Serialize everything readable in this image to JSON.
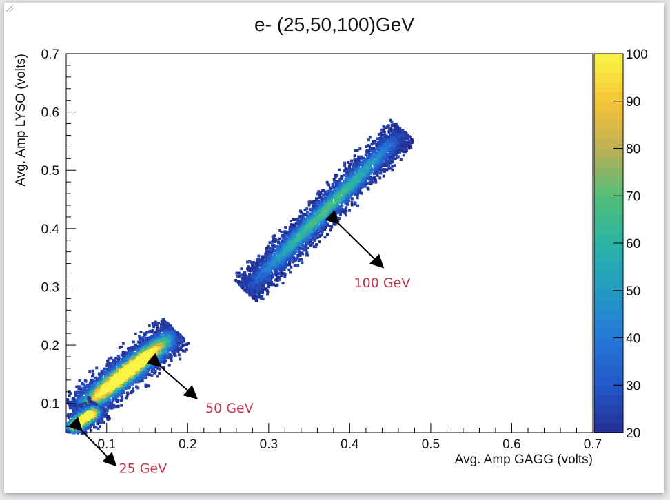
{
  "chart_data": {
    "type": "heatmap",
    "title": "e- (25,50,100)GeV",
    "xlabel": "Avg. Amp GAGG (volts)",
    "ylabel": "Avg. Amp LYSO (volts)",
    "xlim": [
      0.05,
      0.7
    ],
    "ylim": [
      0.05,
      0.7
    ],
    "xticks": [
      "0.1",
      "0.2",
      "0.3",
      "0.4",
      "0.5",
      "0.6",
      "0.7"
    ],
    "yticks": [
      "0.1",
      "0.2",
      "0.3",
      "0.4",
      "0.5",
      "0.6",
      "0.7"
    ],
    "colorbar": {
      "min": 20,
      "max": 100,
      "ticks": [
        "20",
        "30",
        "40",
        "50",
        "60",
        "70",
        "80",
        "90",
        "100"
      ]
    },
    "clusters": [
      {
        "name": "25 GeV",
        "x_range": [
          0.05,
          0.09
        ],
        "y_range": [
          0.05,
          0.09
        ],
        "peak": 100
      },
      {
        "name": "50 GeV",
        "x_range": [
          0.05,
          0.19
        ],
        "y_range": [
          0.07,
          0.23
        ],
        "peak": 100
      },
      {
        "name": "100 GeV",
        "x_range": [
          0.26,
          0.47
        ],
        "y_range": [
          0.27,
          0.58
        ],
        "peak": 70
      }
    ],
    "annotations": [
      {
        "text": "100 GeV",
        "arrow_from": [
          0.385,
          0.41
        ],
        "arrow_to": [
          0.44,
          0.335
        ]
      },
      {
        "text": "50 GeV",
        "arrow_from": [
          0.165,
          0.165
        ],
        "arrow_to": [
          0.21,
          0.11
        ]
      },
      {
        "text": "25 GeV",
        "arrow_from": [
          0.068,
          0.055
        ],
        "arrow_to": [
          0.11,
          -0.005
        ]
      }
    ],
    "annotation_color": "#c0364a"
  }
}
